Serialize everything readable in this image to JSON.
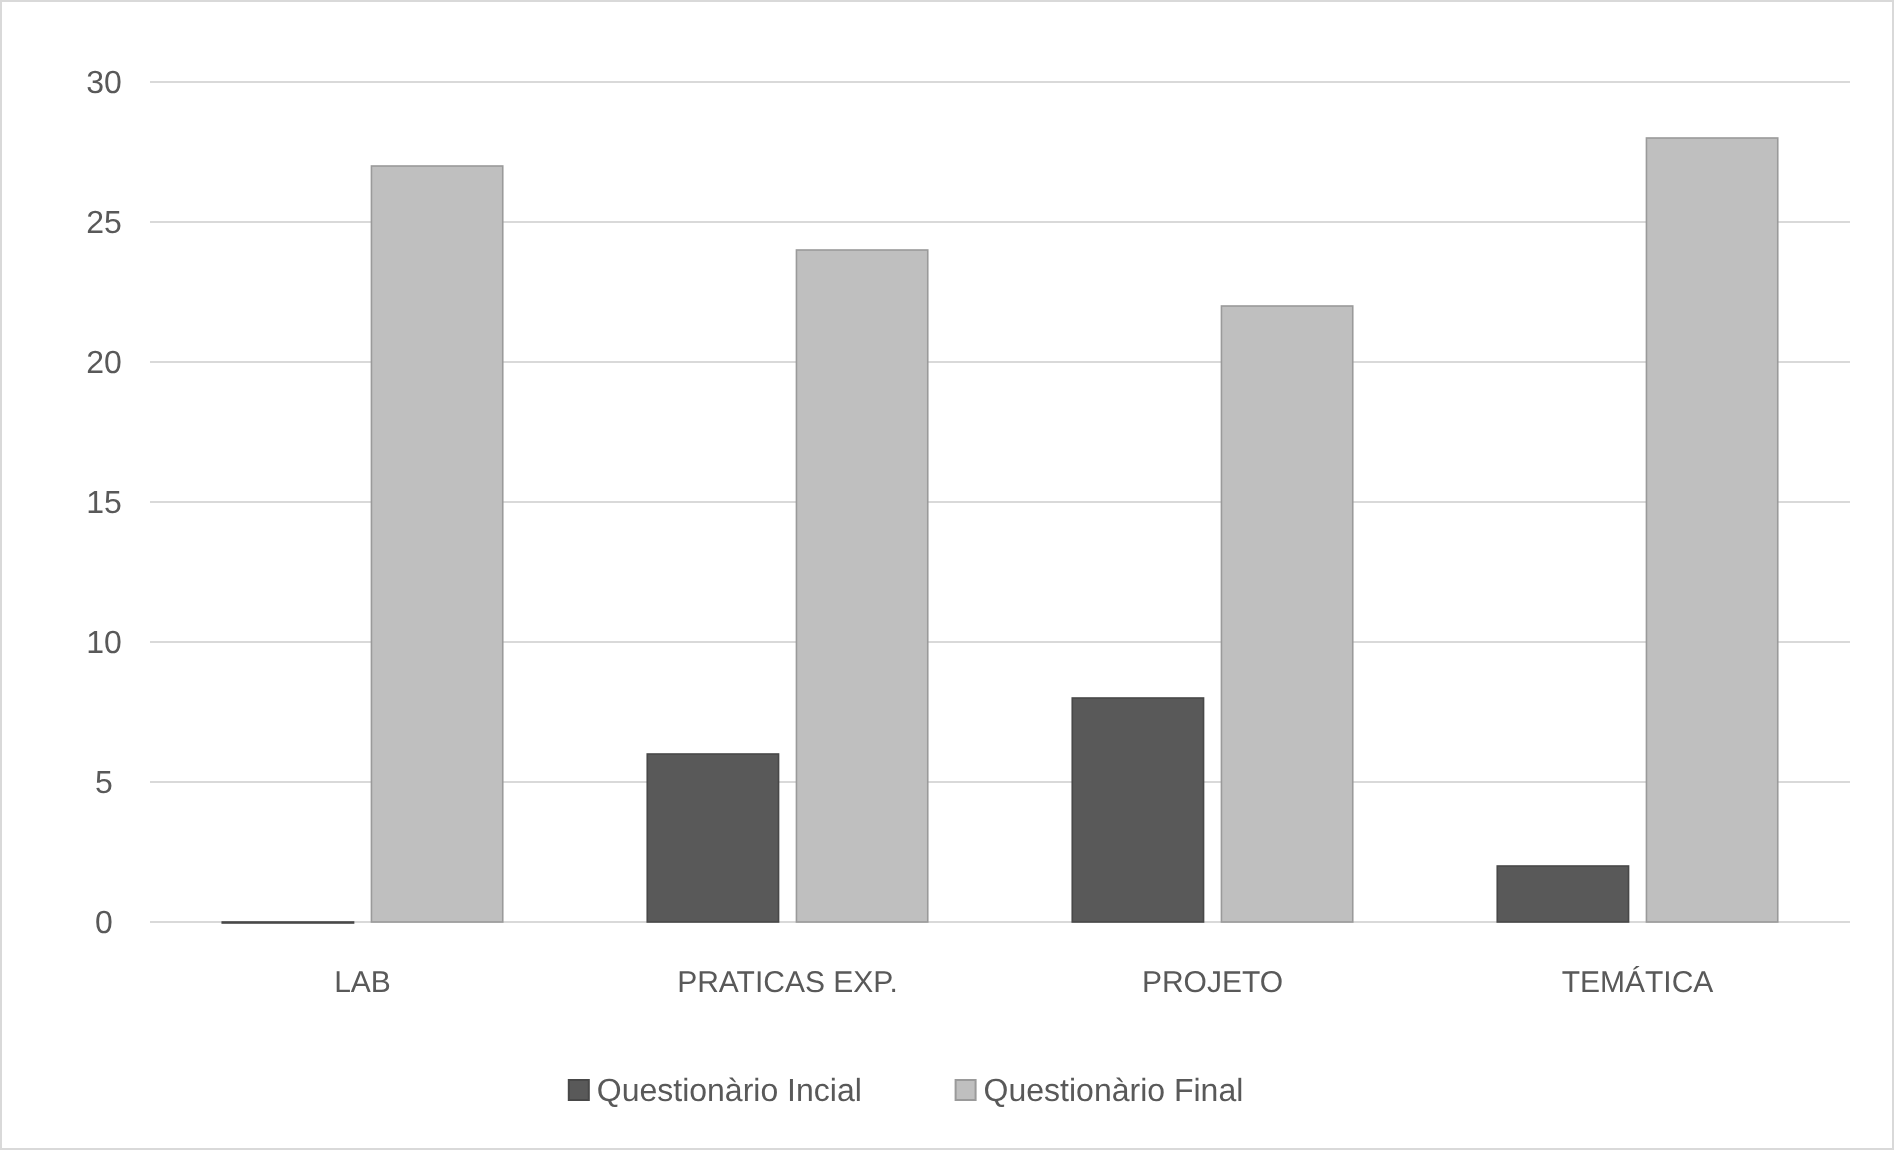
{
  "chart_data": {
    "type": "bar",
    "categories": [
      "LAB",
      "PRATICAS EXP.",
      "PROJETO",
      "TEMÁTICA"
    ],
    "series": [
      {
        "name": "Questionàrio Incial",
        "color": "#595959",
        "values": [
          0,
          6,
          8,
          2
        ]
      },
      {
        "name": "Questionàrio Final",
        "color": "#bfbfbf",
        "values": [
          27,
          24,
          22,
          28
        ]
      }
    ],
    "ylim": [
      0,
      30
    ],
    "yticks": [
      0,
      5,
      10,
      15,
      20,
      25,
      30
    ],
    "grid": "y",
    "legend": "bottom"
  }
}
